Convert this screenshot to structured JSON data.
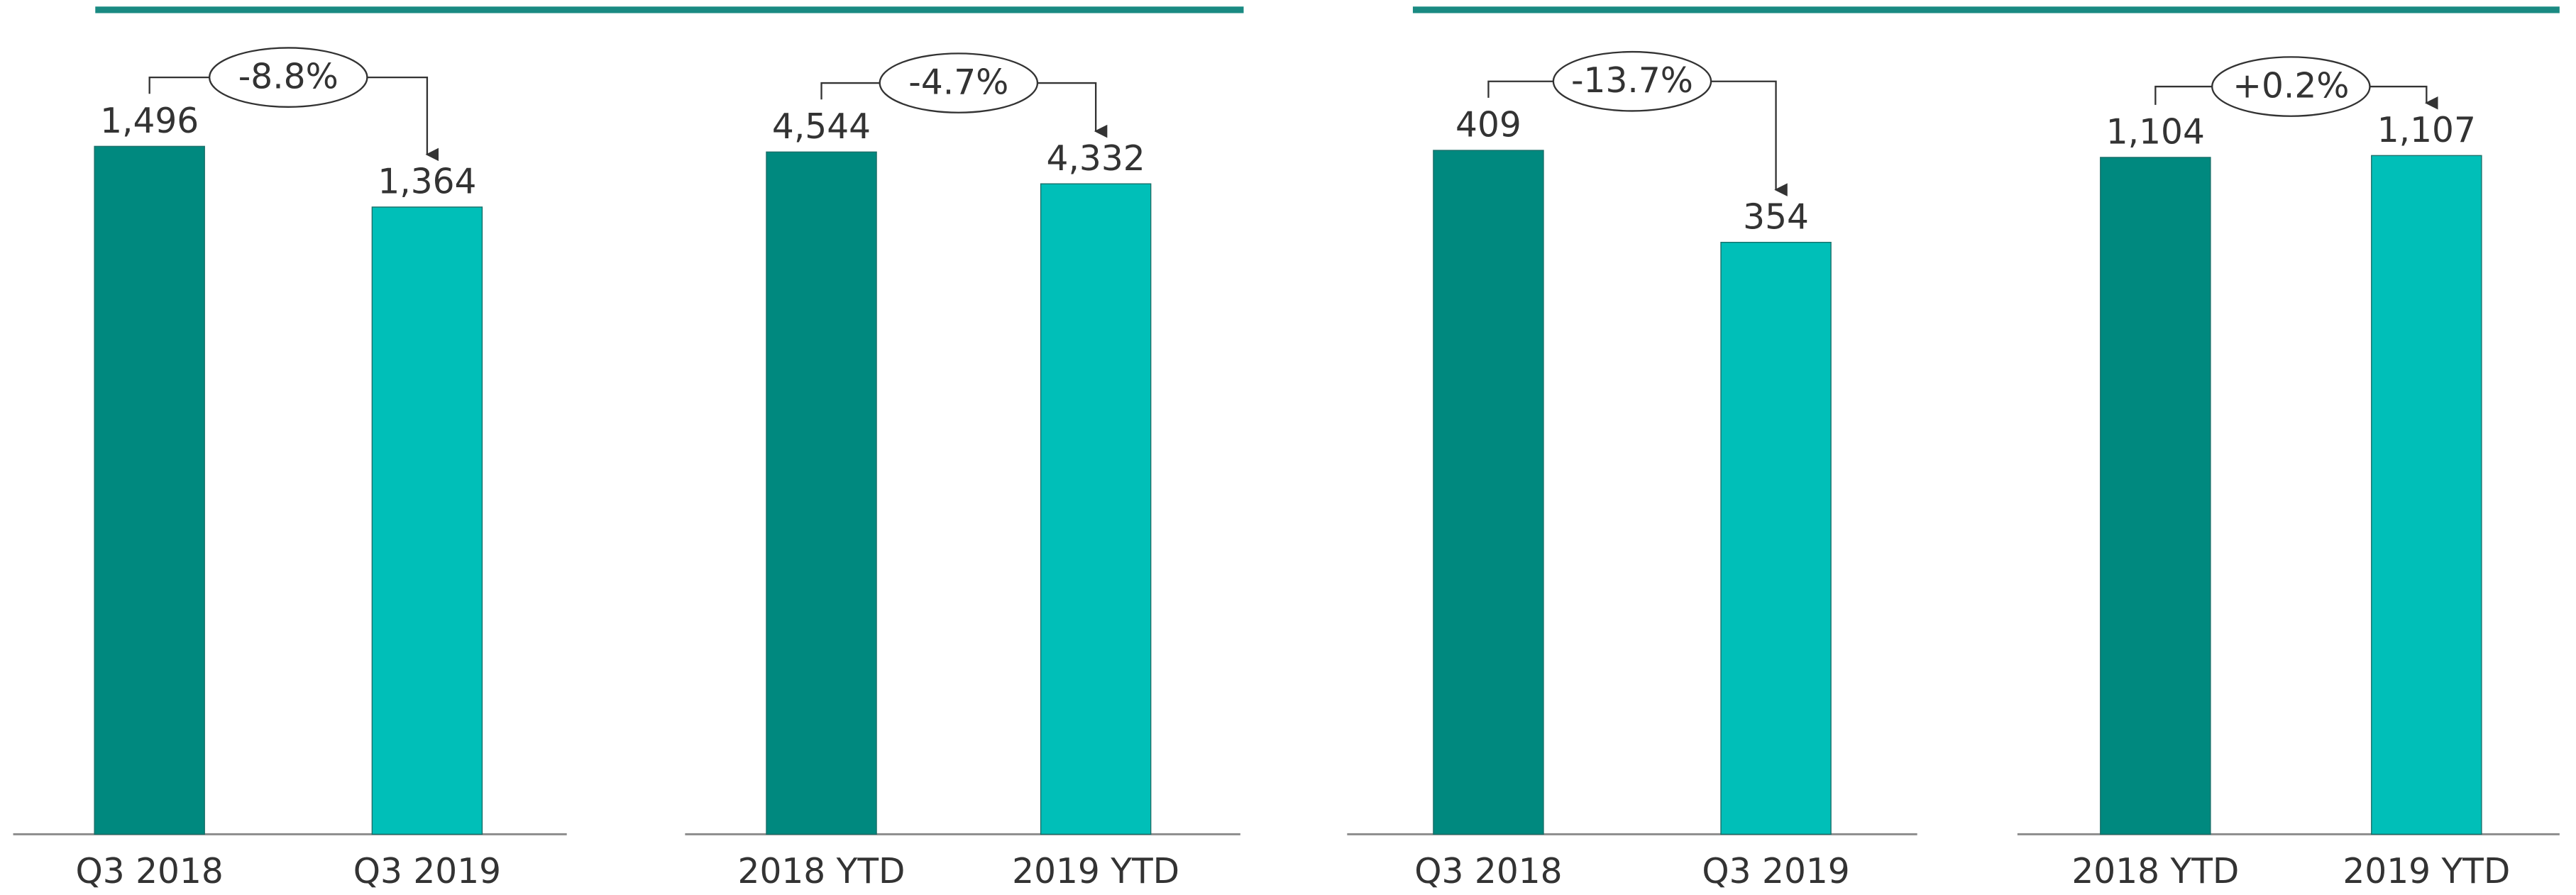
{
  "chart_data": [
    {
      "type": "bar",
      "categories": [
        "Q3 2018",
        "Q3 2019"
      ],
      "values": [
        1496,
        1364
      ],
      "value_labels": [
        "1,496",
        "1,364"
      ],
      "colors": [
        "#00897f",
        "#00bfb8"
      ],
      "annotation": "-8.8%",
      "ylim": [
        0,
        1600
      ]
    },
    {
      "type": "bar",
      "categories": [
        "2018 YTD",
        "2019 YTD"
      ],
      "values": [
        4544,
        4332
      ],
      "value_labels": [
        "4,544",
        "4,332"
      ],
      "colors": [
        "#00897f",
        "#00bfb8"
      ],
      "annotation": "-4.7%",
      "ylim": [
        0,
        4900
      ]
    },
    {
      "type": "bar",
      "categories": [
        "Q3 2018",
        "Q3 2019"
      ],
      "values": [
        409,
        354
      ],
      "colors": [
        "#00897f",
        "#00bfb8"
      ],
      "annotation": "-13.7%",
      "ylim": [
        0,
        440
      ]
    },
    {
      "type": "bar",
      "categories": [
        "2018 YTD",
        "2019 YTD"
      ],
      "values": [
        1104,
        1107
      ],
      "value_labels": [
        "1,104",
        "1,107"
      ],
      "colors": [
        "#00897f",
        "#00bfb8"
      ],
      "annotation": "+0.2%",
      "ylim": [
        0,
        1200
      ]
    }
  ]
}
